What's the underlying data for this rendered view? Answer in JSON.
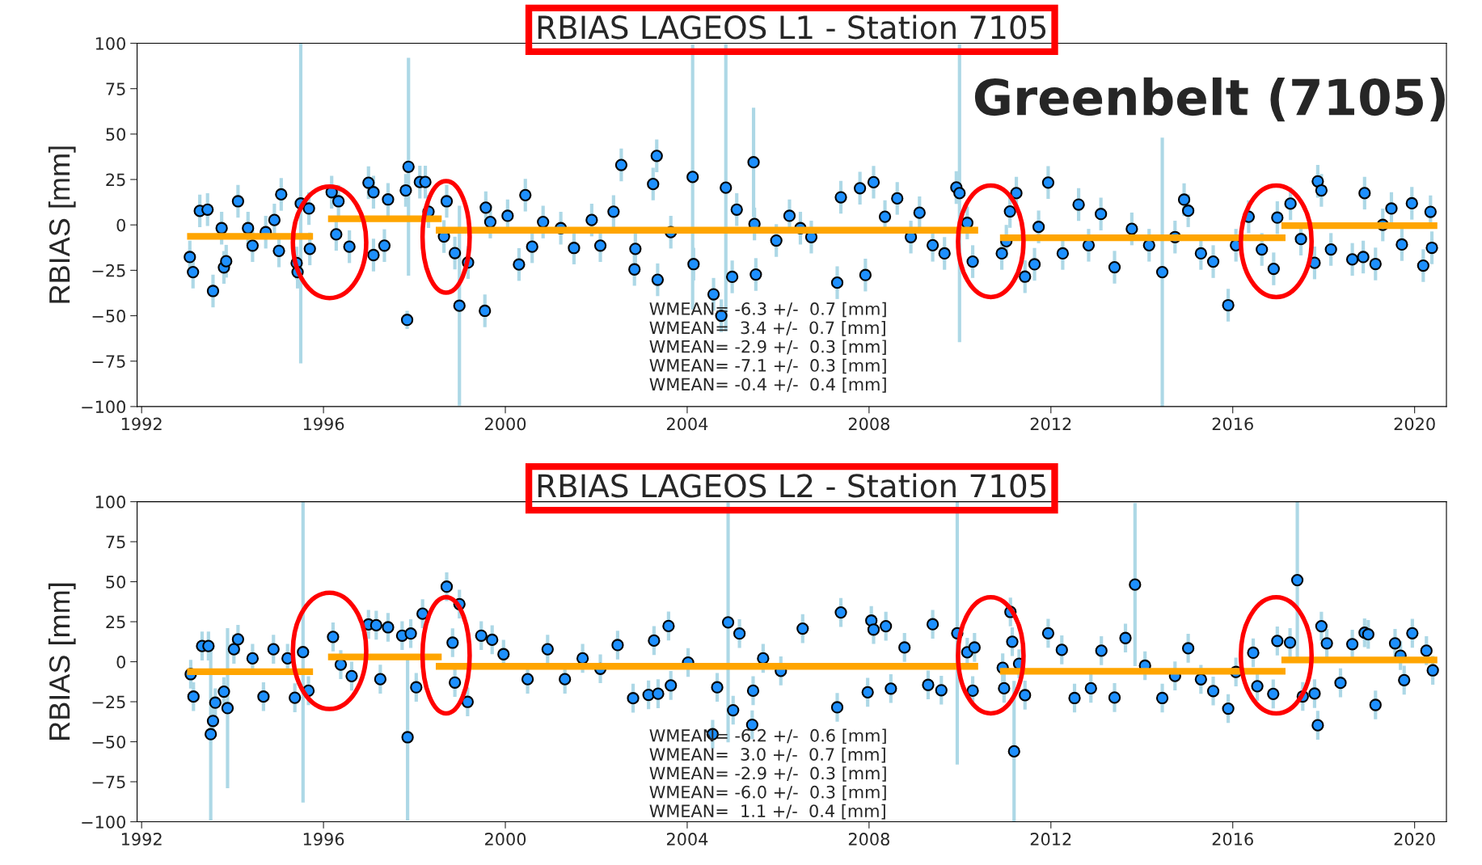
{
  "chart_data": [
    {
      "type": "scatter",
      "title": "RBIAS LAGEOS L1 - Station 7105",
      "ylabel": "RBIAS [mm]",
      "xlim": [
        1991.9,
        2020.7
      ],
      "xticks": [
        1992,
        1996,
        2000,
        2004,
        2008,
        2012,
        2016,
        2020
      ],
      "ylim": [
        -100,
        100
      ],
      "yticks": [
        {
          "value": -100,
          "label": "−100"
        },
        {
          "value": -75,
          "label": "−75"
        },
        {
          "value": -50,
          "label": "−50"
        },
        {
          "value": -25,
          "label": "−25"
        },
        0,
        25,
        50,
        75,
        100
      ],
      "grid": false,
      "legend": false,
      "annotations": [
        "WMEAN= -6.3 +/-  0.7 [mm]",
        "WMEAN=  3.4 +/-  0.7 [mm]",
        "WMEAN= -2.9 +/-  0.3 [mm]",
        "WMEAN= -7.1 +/-  0.3 [mm]",
        "WMEAN= -0.4 +/-  0.4 [mm]",
        "Greenbelt (7105)"
      ],
      "series": [
        {
          "color": "#1e90ff",
          "marker": "circle",
          "x": [
            1993.06,
            1993.13,
            1993.28,
            1993.45,
            1993.57,
            1993.76,
            1993.81,
            1993.86,
            1994.12,
            1994.34,
            1994.44,
            1994.73,
            1994.92,
            1995.07,
            1995.02,
            1995.41,
            1995.43,
            1995.5,
            1995.68,
            1995.7,
            1996.18,
            1996.33,
            1996.28,
            1996.57,
            1996.99,
            1997.1,
            1997.34,
            1997.1,
            1997.42,
            1997.87,
            1997.84,
            1997.81,
            1998.12,
            1998.24,
            1998.31,
            1998.71,
            1998.65,
            1998.89,
            1998.99,
            1999.18,
            1999.55,
            1999.57,
            1999.67,
            2000.05,
            2000.3,
            2000.44,
            2000.59,
            2000.83,
            2001.22,
            2001.51,
            2001.9,
            2002.09,
            2002.38,
            2002.55,
            2002.84,
            2002.86,
            2003.25,
            2003.33,
            2003.35,
            2003.64,
            2004.12,
            2004.14,
            2004.58,
            2004.75,
            2004.85,
            2004.99,
            2005.09,
            2005.46,
            2005.51,
            2005.48,
            2005.96,
            2006.25,
            2006.49,
            2006.73,
            2007.3,
            2007.38,
            2007.8,
            2007.92,
            2008.1,
            2008.35,
            2008.62,
            2008.92,
            2009.11,
            2009.4,
            2009.66,
            2009.92,
            2009.99,
            2010.16,
            2010.28,
            2010.92,
            2011.02,
            2011.1,
            2011.24,
            2011.43,
            2011.64,
            2011.73,
            2011.94,
            2012.26,
            2012.61,
            2012.83,
            2013.1,
            2013.4,
            2013.78,
            2014.16,
            2014.45,
            2014.73,
            2014.93,
            2015.02,
            2015.3,
            2015.57,
            2015.9,
            2016.07,
            2016.35,
            2016.64,
            2016.9,
            2016.98,
            2017.27,
            2017.5,
            2017.8,
            2017.87,
            2017.95,
            2018.16,
            2018.63,
            2018.9,
            2018.87,
            2019.14,
            2019.3,
            2019.49,
            2019.72,
            2019.94,
            2020.19,
            2020.35,
            2020.38
          ],
          "values": [
            -17.7,
            -26,
            7.7,
            8.4,
            -36.4,
            -1.8,
            -23.4,
            -20,
            13,
            -1.8,
            -11.4,
            -4,
            2.7,
            16.8,
            -14.3,
            -21,
            -26,
            11.8,
            9,
            -13.2,
            18,
            13,
            -5.2,
            -12,
            23.2,
            18,
            -11.4,
            -16.6,
            14,
            32,
            -52.3,
            19,
            23.6,
            23.6,
            7.3,
            13,
            -6.4,
            -15.5,
            -44.5,
            -20.7,
            -47.3,
            9.5,
            1.6,
            5,
            -21.8,
            16.4,
            -12,
            1.6,
            -1.8,
            -12.7,
            2.7,
            -11.4,
            7.3,
            33,
            -24.5,
            -13.2,
            22.5,
            38,
            -30.2,
            -4,
            26.4,
            -21.6,
            -38.2,
            -50,
            20.5,
            -28.6,
            8.4,
            34.5,
            -27.3,
            0.5,
            -8.6,
            5,
            -1.8,
            -6.7,
            -31.8,
            15.2,
            20.2,
            -27.6,
            23.5,
            4.5,
            14.6,
            -6.7,
            6.7,
            -11.2,
            -15.7,
            20.6,
            17.5,
            1.1,
            -20.2,
            -15.7,
            -9,
            7.4,
            17.5,
            -28.5,
            -21.7,
            -1.1,
            23.3,
            -15.7,
            11.2,
            -11.2,
            6,
            -23.3,
            -2.2,
            -11.2,
            -26,
            -6.7,
            13.9,
            7.8,
            -15.7,
            -20.2,
            -44.2,
            -11.2,
            4.5,
            -13.5,
            -24.2,
            4,
            11.7,
            -7.8,
            -20.9,
            24,
            19,
            -13.5,
            -19,
            17.5,
            -17.7,
            -21.5,
            0,
            9,
            -10.8,
            11.9,
            -22.4,
            7.2,
            -12.6
          ],
          "errors": [
            9,
            9,
            9,
            9,
            9,
            9,
            9,
            9,
            9,
            9,
            9,
            9,
            9,
            9,
            9,
            9,
            9,
            88,
            9,
            9,
            9,
            9,
            9,
            9,
            9,
            9,
            9,
            9,
            9,
            60,
            5,
            9,
            9,
            9,
            9,
            9,
            9,
            9,
            55,
            9,
            9,
            9,
            9,
            9,
            9,
            9,
            9,
            9,
            9,
            9,
            9,
            9,
            9,
            9,
            9,
            9,
            9,
            9,
            9,
            9,
            73,
            9,
            9,
            9,
            79,
            9,
            9,
            30,
            9,
            9,
            9,
            9,
            9,
            9,
            9,
            9,
            9,
            9,
            9,
            9,
            9,
            9,
            9,
            9,
            9,
            9,
            82,
            9,
            9,
            9,
            9,
            9,
            9,
            9,
            9,
            9,
            9,
            9,
            9,
            9,
            9,
            9,
            9,
            9,
            74,
            9,
            9,
            9,
            9,
            9,
            9,
            9,
            9,
            9,
            9,
            9,
            9,
            9,
            9,
            9,
            9,
            9,
            9,
            9,
            9,
            9,
            9,
            9,
            9,
            9,
            9,
            9,
            9
          ]
        },
        {
          "type": "line",
          "color": "#ffa500",
          "x": [
            1993.0,
            1995.77,
            null,
            1996.1,
            1998.6,
            null,
            1998.47,
            2010.4,
            null,
            2010.88,
            2017.16,
            null,
            2017.07,
            2020.5
          ],
          "values": [
            -6.3,
            -6.3,
            null,
            3.4,
            3.4,
            null,
            -2.9,
            -2.9,
            null,
            -7.1,
            -7.1,
            null,
            -0.4,
            -0.4
          ]
        }
      ]
    },
    {
      "type": "scatter",
      "title": "RBIAS LAGEOS L2 - Station 7105",
      "ylabel": "RBIAS [mm]",
      "xlim": [
        1991.9,
        2020.7
      ],
      "xticks": [
        1992,
        1996,
        2000,
        2004,
        2008,
        2012,
        2016,
        2020
      ],
      "ylim": [
        -100,
        100
      ],
      "yticks": [
        {
          "value": -100,
          "label": "−100"
        },
        {
          "value": -75,
          "label": "−75"
        },
        {
          "value": -50,
          "label": "−50"
        },
        {
          "value": -25,
          "label": "−25"
        },
        0,
        25,
        50,
        75,
        100
      ],
      "grid": false,
      "legend": false,
      "annotations": [
        "WMEAN= -6.2 +/-  0.6 [mm]",
        "WMEAN=  3.0 +/-  0.7 [mm]",
        "WMEAN= -2.9 +/-  0.3 [mm]",
        "WMEAN= -6.0 +/-  0.3 [mm]",
        "WMEAN=  1.1 +/-  0.4 [mm]"
      ],
      "series": [
        {
          "color": "#1e90ff",
          "marker": "circle",
          "x": [
            1993.08,
            1993.14,
            1993.33,
            1993.47,
            1993.52,
            1993.57,
            1993.62,
            1993.89,
            1993.81,
            1994.03,
            1994.12,
            1994.44,
            1994.68,
            1994.9,
            1995.21,
            1995.37,
            1995.55,
            1995.67,
            1996.21,
            1996.38,
            1996.62,
            1996.99,
            1997.16,
            1997.25,
            1997.42,
            1997.73,
            1997.85,
            1997.92,
            1998.04,
            1998.18,
            1998.71,
            1998.99,
            1998.84,
            1998.89,
            1999.17,
            1999.47,
            1999.71,
            1999.96,
            2000.49,
            2000.93,
            2001.31,
            2001.7,
            2002.09,
            2002.47,
            2002.81,
            2003.15,
            2003.27,
            2003.36,
            2003.59,
            2003.64,
            2004.02,
            2004.56,
            2004.66,
            2004.9,
            2005.01,
            2005.15,
            2005.43,
            2005.45,
            2005.67,
            2006.06,
            2006.54,
            2007.3,
            2007.38,
            2007.97,
            2008.05,
            2008.1,
            2008.37,
            2008.48,
            2008.78,
            2009.3,
            2009.4,
            2009.59,
            2009.94,
            2010.16,
            2010.28,
            2010.32,
            2010.94,
            2010.97,
            2011.11,
            2011.15,
            2011.19,
            2011.3,
            2011.43,
            2011.94,
            2012.24,
            2012.52,
            2012.88,
            2013.11,
            2013.4,
            2013.64,
            2013.85,
            2014.07,
            2014.45,
            2014.73,
            2015.02,
            2015.3,
            2015.57,
            2015.9,
            2016.07,
            2016.45,
            2016.54,
            2016.89,
            2016.98,
            2017.26,
            2017.42,
            2017.54,
            2017.8,
            2017.87,
            2017.95,
            2018.07,
            2018.37,
            2018.63,
            2018.9,
            2019.14,
            2018.98,
            2019.57,
            2019.69,
            2019.77,
            2019.95,
            2020.26,
            2020.4
          ],
          "values": [
            -7.8,
            -21.8,
            9.8,
            9.8,
            -45.3,
            -37,
            -25.6,
            -29,
            -18.7,
            7.8,
            14,
            2.1,
            -21.8,
            7.8,
            2.1,
            -22.5,
            6,
            -18.1,
            15.5,
            -1.8,
            -9,
            23.3,
            22.8,
            -10.9,
            21.5,
            16.3,
            -47.2,
            17.6,
            -16,
            30,
            46.9,
            36,
            11.9,
            -13,
            -25.1,
            16.3,
            13.7,
            4.7,
            -10.9,
            7.8,
            -10.9,
            2.1,
            -4.4,
            10.4,
            -22.8,
            -20.7,
            13.2,
            -20,
            22.3,
            -14.8,
            -0.5,
            -45.3,
            -16,
            24.6,
            -30.3,
            17.6,
            -39.4,
            -18.1,
            2.1,
            -5.7,
            20.7,
            -28.5,
            30.8,
            -19.1,
            25.7,
            20.1,
            22.2,
            -16.8,
            8.9,
            -14.5,
            23.4,
            -17.8,
            17.8,
            5.9,
            -18.1,
            8.9,
            -3.8,
            -16.6,
            31.1,
            12.5,
            -56,
            -1.3,
            -20.9,
            17.8,
            7.4,
            -22.7,
            -16.6,
            6.9,
            -22.4,
            14.8,
            48.2,
            -2.5,
            -22.7,
            -8.9,
            8.4,
            -11,
            -18.3,
            -29.3,
            -6.4,
            5.6,
            -15.3,
            -20.1,
            13,
            12,
            51,
            -21.7,
            -19.9,
            -39.7,
            22.2,
            11.5,
            -13.2,
            11,
            18.1,
            -27,
            17.1,
            11.5,
            3.8,
            -11.5,
            17.8,
            6.9,
            -5.4
          ],
          "errors": [
            9,
            9,
            9,
            9,
            54,
            9,
            9,
            50,
            9,
            9,
            9,
            9,
            9,
            9,
            9,
            9,
            94,
            9,
            9,
            9,
            9,
            9,
            9,
            9,
            9,
            9,
            52,
            9,
            9,
            9,
            9,
            9,
            9,
            9,
            9,
            9,
            9,
            9,
            9,
            9,
            9,
            9,
            9,
            9,
            9,
            9,
            9,
            9,
            9,
            9,
            9,
            9,
            9,
            75,
            9,
            9,
            9,
            9,
            9,
            9,
            9,
            9,
            9,
            9,
            9,
            9,
            9,
            9,
            9,
            9,
            9,
            9,
            82,
            9,
            9,
            9,
            9,
            9,
            9,
            9,
            44,
            9,
            9,
            9,
            9,
            9,
            9,
            9,
            9,
            9,
            51,
            9,
            9,
            9,
            9,
            9,
            9,
            9,
            9,
            9,
            9,
            9,
            9,
            9,
            49,
            9,
            9,
            9,
            9,
            9,
            9,
            9,
            9,
            9,
            9,
            9,
            9,
            9,
            9,
            9,
            9
          ]
        },
        {
          "type": "line",
          "color": "#ffa500",
          "x": [
            1993.0,
            1995.77,
            null,
            1996.1,
            1998.6,
            null,
            1998.47,
            2010.4,
            null,
            2010.88,
            2017.16,
            null,
            2017.07,
            2020.5
          ],
          "values": [
            -6.2,
            -6.2,
            null,
            3.0,
            3.0,
            null,
            -2.9,
            -2.9,
            null,
            -6.0,
            -6.0,
            null,
            1.1,
            1.1
          ]
        }
      ]
    }
  ]
}
